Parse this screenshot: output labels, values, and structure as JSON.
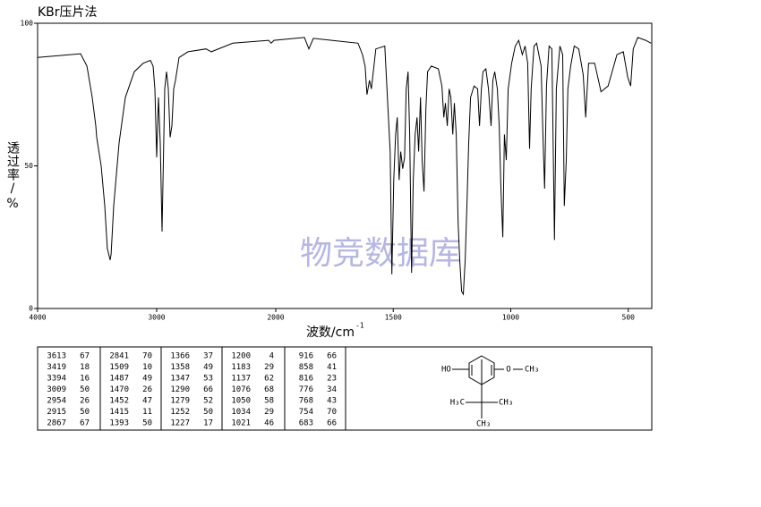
{
  "chart_data": {
    "type": "line",
    "title": "KBr压片法",
    "y_label": "透过率/%",
    "x_label": "波数/cm",
    "x_label_superscript": "-1",
    "watermark": "物竞数据库",
    "xlim": [
      4000,
      400
    ],
    "x_scale_change": 2000,
    "xticks": [
      4000,
      3000,
      2000,
      1500,
      1000,
      500
    ],
    "ylim": [
      0,
      100
    ],
    "yticks": [
      0,
      50,
      100
    ],
    "color": "#000000",
    "x": [
      4000,
      3639,
      3586,
      3541,
      3511,
      3504,
      3466,
      3436,
      3414,
      3391,
      3383,
      3361,
      3316,
      3263,
      3188,
      3113,
      3053,
      3030,
      3015,
      3000,
      2985,
      2970,
      2955,
      2932,
      2917,
      2902,
      2887,
      2872,
      2857,
      2842,
      2812,
      2737,
      2586,
      2541,
      2361,
      2060,
      2038,
      2015,
      1878,
      1859,
      1840,
      1650,
      1631,
      1620,
      1612,
      1601,
      1593,
      1574,
      1536,
      1513,
      1506,
      1498,
      1490,
      1483,
      1475,
      1468,
      1460,
      1452,
      1445,
      1437,
      1430,
      1422,
      1415,
      1407,
      1399,
      1392,
      1384,
      1377,
      1369,
      1361,
      1354,
      1338,
      1308,
      1293,
      1285,
      1278,
      1270,
      1262,
      1255,
      1247,
      1240,
      1232,
      1224,
      1217,
      1209,
      1202,
      1194,
      1186,
      1179,
      1171,
      1156,
      1141,
      1133,
      1125,
      1118,
      1106,
      1095,
      1084,
      1076,
      1068,
      1057,
      1049,
      1042,
      1034,
      1027,
      1019,
      1011,
      996,
      981,
      966,
      951,
      939,
      928,
      920,
      913,
      901,
      890,
      878,
      871,
      863,
      856,
      848,
      837,
      825,
      814,
      806,
      791,
      779,
      772,
      764,
      757,
      745,
      730,
      711,
      692,
      681,
      669,
      643,
      616,
      586,
      548,
      521,
      502,
      490,
      479,
      460,
      426,
      403
    ],
    "values": [
      88,
      89.3,
      85,
      74,
      64,
      60,
      50,
      36,
      21,
      17,
      19,
      36,
      58,
      74,
      83,
      86,
      87,
      85,
      77,
      53,
      74,
      58,
      27,
      77,
      83,
      77,
      60,
      64,
      77,
      80,
      88,
      90,
      91,
      90,
      93,
      94,
      93,
      94,
      95,
      91,
      94.7,
      93,
      89,
      85,
      75,
      80,
      77,
      91,
      92,
      55,
      12,
      45,
      61,
      67,
      45,
      55,
      49,
      53,
      77,
      83,
      61,
      12.5,
      45,
      61,
      67,
      55,
      74,
      52,
      41,
      70,
      83,
      85,
      84,
      78,
      67,
      72,
      64,
      77,
      74,
      61,
      72,
      61,
      30,
      17,
      6,
      5,
      17,
      38,
      58,
      74,
      78,
      77,
      64,
      77,
      83,
      84,
      77,
      64,
      80,
      83,
      77,
      64,
      42,
      25,
      61,
      52,
      77,
      86,
      92,
      94,
      89,
      92,
      86,
      56,
      77,
      92,
      93,
      88,
      85,
      60,
      42,
      78,
      92,
      91,
      24,
      77,
      92,
      89,
      36,
      52,
      77,
      85,
      92,
      91,
      82,
      67,
      86,
      86,
      76,
      78,
      89,
      90,
      81,
      78,
      91,
      95,
      94,
      93
    ]
  },
  "peak_table": [
    [
      3613,
      67
    ],
    [
      3419,
      18
    ],
    [
      3394,
      16
    ],
    [
      3009,
      50
    ],
    [
      2954,
      26
    ],
    [
      2915,
      50
    ],
    [
      2867,
      67
    ],
    [
      2841,
      70
    ],
    [
      1509,
      10
    ],
    [
      1487,
      49
    ],
    [
      1470,
      26
    ],
    [
      1452,
      47
    ],
    [
      1415,
      11
    ],
    [
      1393,
      50
    ],
    [
      1366,
      37
    ],
    [
      1358,
      49
    ],
    [
      1347,
      53
    ],
    [
      1290,
      66
    ],
    [
      1279,
      52
    ],
    [
      1252,
      50
    ],
    [
      1227,
      17
    ],
    [
      1200,
      4
    ],
    [
      1183,
      29
    ],
    [
      1137,
      62
    ],
    [
      1076,
      68
    ],
    [
      1050,
      58
    ],
    [
      1034,
      29
    ],
    [
      1021,
      46
    ],
    [
      916,
      66
    ],
    [
      858,
      41
    ],
    [
      816,
      23
    ],
    [
      776,
      34
    ],
    [
      768,
      43
    ],
    [
      754,
      70
    ],
    [
      683,
      66
    ]
  ],
  "structure": {
    "labels": [
      "HO",
      "O",
      "CH₃",
      "H₃C",
      "CH₃",
      "CH₃"
    ]
  }
}
